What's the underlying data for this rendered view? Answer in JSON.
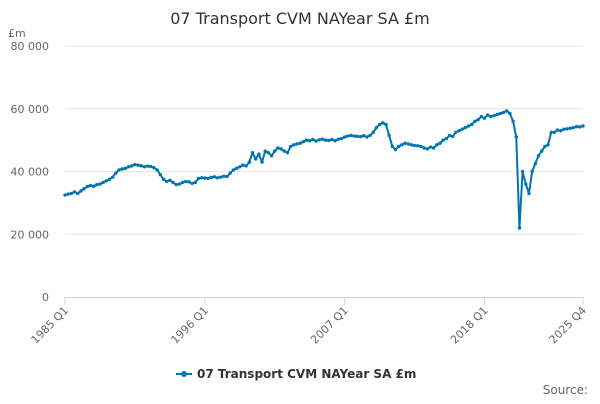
{
  "chart_data": {
    "type": "line",
    "title": "07 Transport CVM NAYear SA £m",
    "ylabel": "£m",
    "xlabel": "",
    "ylim": [
      0,
      80000
    ],
    "y_ticks": [
      0,
      20000,
      40000,
      60000,
      80000
    ],
    "y_tick_labels": [
      "0",
      "20 000",
      "40 000",
      "60 000",
      "80 000"
    ],
    "x_tick_labels": [
      "1985 Q1",
      "1996 Q1",
      "2007 Q1",
      "2018 Q1",
      "2025 Q4"
    ],
    "x_tick_index": [
      0,
      44,
      88,
      132,
      163
    ],
    "grid": true,
    "legend": "bottom-center",
    "series_color": "#0075b0",
    "categories_range": {
      "start": "1985 Q1",
      "end": "2025 Q4",
      "frequency": "quarterly"
    },
    "series": [
      {
        "name": "07 Transport CVM NAYear SA £m",
        "values": [
          32500,
          32800,
          33000,
          33500,
          33000,
          33800,
          34500,
          35200,
          35500,
          35300,
          35800,
          36000,
          36500,
          37000,
          37500,
          38200,
          39500,
          40500,
          40800,
          41000,
          41500,
          41800,
          42200,
          42000,
          41800,
          41500,
          41700,
          41600,
          41200,
          40500,
          39000,
          37500,
          36800,
          37200,
          36500,
          35800,
          36000,
          36500,
          36800,
          36700,
          36200,
          36500,
          37800,
          38000,
          37900,
          37800,
          38100,
          38300,
          38000,
          38200,
          38500,
          38400,
          39500,
          40500,
          41000,
          41500,
          42000,
          41800,
          43000,
          46000,
          44000,
          45500,
          43000,
          46500,
          46000,
          45000,
          46500,
          47500,
          47200,
          46500,
          46000,
          48000,
          48500,
          48800,
          49000,
          49500,
          50000,
          49800,
          50200,
          49700,
          50100,
          50300,
          50000,
          49900,
          50200,
          49800,
          50300,
          50500,
          51000,
          51300,
          51500,
          51300,
          51200,
          51100,
          51400,
          51000,
          51500,
          52500,
          54000,
          55000,
          55500,
          55000,
          51500,
          48000,
          47000,
          48000,
          48500,
          49000,
          48800,
          48500,
          48300,
          48200,
          48000,
          47500,
          47200,
          47800,
          47500,
          48500,
          49000,
          50000,
          50500,
          51500,
          51200,
          52500,
          53000,
          53500,
          54000,
          54500,
          55000,
          56000,
          56500,
          57500,
          57000,
          58000,
          57500,
          57800,
          58200,
          58500,
          58800,
          59300,
          58500,
          56000,
          51000,
          22000,
          40000,
          36000,
          33000,
          40000,
          42500,
          45000,
          46500,
          48000,
          48500,
          52500,
          52500,
          53200,
          53000,
          53500,
          53600,
          53800,
          54000,
          54300,
          54200,
          54500
        ]
      }
    ]
  },
  "footer": {
    "source_label": "Source:"
  }
}
